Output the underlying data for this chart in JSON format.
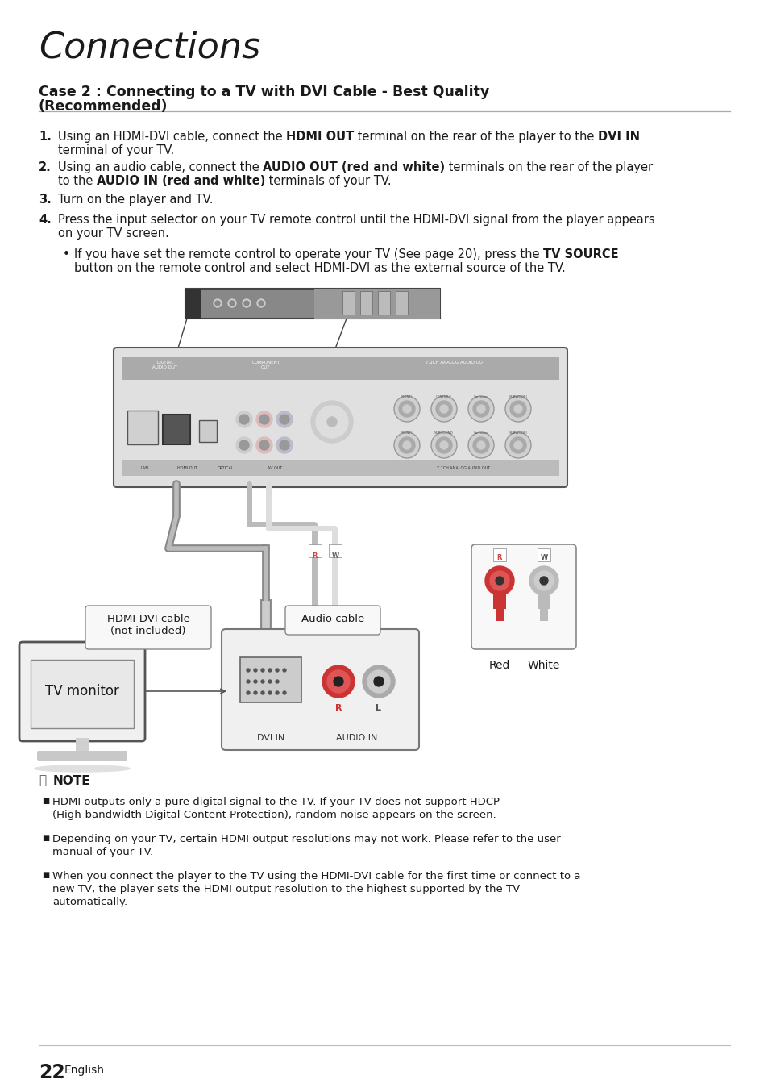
{
  "bg_color": "#ffffff",
  "title": "Connections",
  "section_title_line1": "Case 2 : Connecting to a TV with DVI Cable - Best Quality",
  "section_title_line2": "(Recommended)",
  "step1_a": "Using an HDMI-DVI cable, connect the ",
  "step1_b": "HDMI OUT",
  "step1_c": " terminal on the rear of the player to the ",
  "step1_d": "DVI IN",
  "step1_e": " terminal of your TV.",
  "step1_wrap": "terminal of your TV.",
  "step2_a": "Using an audio cable, connect the ",
  "step2_b": "AUDIO OUT (red and white)",
  "step2_c": " terminals on the rear of the player",
  "step2_d": "to the ",
  "step2_e": "AUDIO IN (red and white)",
  "step2_f": " terminals of your TV.",
  "step3": "Turn on the player and TV.",
  "step4_a": "Press the input selector on your TV remote control until the HDMI-DVI signal from the player appears",
  "step4_b": "on your TV screen.",
  "bullet_a": "If you have set the remote control to operate your TV (See page 20), press the ",
  "bullet_b": "TV SOURCE",
  "bullet_c": " button on the remote control and select HDMI-DVI as the external source of the TV.",
  "note_title": "NOTE",
  "notes": [
    "HDMI outputs only a pure digital signal to the TV. If your TV does not support HDCP (High-bandwidth Digital Content Protection), random noise appears on the screen.",
    "Depending on your TV, certain HDMI output resolutions may not work. Please refer to the user manual of your TV.",
    "When you connect the player to the TV using the HDMI-DVI cable for the first time or connect to a new TV, the player sets the HDMI output resolution to the highest supported by the TV automatically."
  ],
  "page_num": "22",
  "page_lang": "English",
  "label_hdmi": "HDMI-DVI cable\n(not included)",
  "label_audio": "Audio cable",
  "label_tv": "TV monitor",
  "label_red": "Red",
  "label_white": "White",
  "label_dvi_in": "DVI IN",
  "label_audio_in": "AUDIO IN"
}
